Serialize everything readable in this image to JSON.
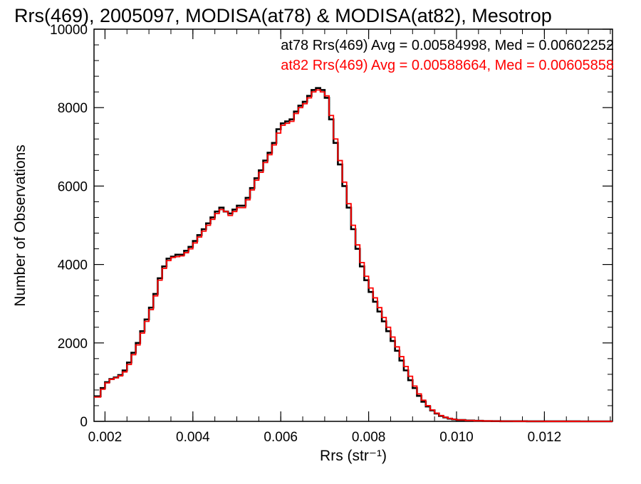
{
  "chart_data": {
    "type": "line",
    "step": true,
    "title": "Rrs(469), 2005097, MODISA(at78) & MODISA(at82), Mesotrop",
    "xlabel": "Rrs (str⁻¹)",
    "ylabel": "Number of Observations",
    "xlim": [
      0.00175,
      0.01355
    ],
    "ylim": [
      0,
      10000
    ],
    "xticks": [
      0.002,
      0.004,
      0.006,
      0.008,
      0.01,
      0.012
    ],
    "xtick_labels": [
      "0.002",
      "0.004",
      "0.006",
      "0.008",
      "0.010",
      "0.012"
    ],
    "yticks": [
      0,
      2000,
      4000,
      6000,
      8000,
      10000
    ],
    "ytick_labels": [
      "0",
      "2000",
      "4000",
      "6000",
      "8000",
      "10000"
    ],
    "grid": false,
    "legend_position": "top-right",
    "series": [
      {
        "name": "at78",
        "color": "#000000",
        "legend_text": "at78 Rrs(469) Avg = 0.00584998, Med = 0.00602252",
        "x": [
          0.00175,
          0.0019,
          0.002,
          0.0021,
          0.0022,
          0.0023,
          0.0024,
          0.0025,
          0.0026,
          0.0027,
          0.0028,
          0.0029,
          0.003,
          0.0031,
          0.0032,
          0.0033,
          0.0034,
          0.0035,
          0.0036,
          0.0037,
          0.0038,
          0.0039,
          0.004,
          0.0041,
          0.0042,
          0.0043,
          0.0044,
          0.0045,
          0.0046,
          0.0047,
          0.0048,
          0.0049,
          0.005,
          0.0051,
          0.0052,
          0.0053,
          0.0054,
          0.0055,
          0.0056,
          0.0057,
          0.0058,
          0.0059,
          0.006,
          0.0061,
          0.0062,
          0.0063,
          0.0064,
          0.0065,
          0.0066,
          0.0067,
          0.0068,
          0.0069,
          0.007,
          0.0071,
          0.0072,
          0.0073,
          0.0074,
          0.0075,
          0.0076,
          0.0077,
          0.0078,
          0.0079,
          0.008,
          0.0081,
          0.0082,
          0.0083,
          0.0084,
          0.0085,
          0.0086,
          0.0087,
          0.0088,
          0.0089,
          0.009,
          0.0091,
          0.0092,
          0.0093,
          0.0094,
          0.0095,
          0.0096,
          0.0097,
          0.0098,
          0.0099,
          0.01,
          0.0102,
          0.0104,
          0.0106,
          0.0108,
          0.011,
          0.0113,
          0.0116,
          0.012,
          0.0124,
          0.0128,
          0.0132,
          0.01355
        ],
        "values": [
          640,
          850,
          1000,
          1080,
          1120,
          1180,
          1300,
          1500,
          1750,
          2000,
          2300,
          2600,
          2900,
          3250,
          3650,
          3950,
          4150,
          4200,
          4250,
          4250,
          4350,
          4450,
          4600,
          4750,
          4900,
          5050,
          5200,
          5350,
          5450,
          5350,
          5300,
          5400,
          5500,
          5500,
          5700,
          5950,
          6200,
          6400,
          6650,
          6850,
          7100,
          7450,
          7600,
          7650,
          7700,
          7900,
          8050,
          8150,
          8300,
          8450,
          8500,
          8450,
          8250,
          7700,
          7100,
          6550,
          6000,
          5450,
          4900,
          4400,
          3950,
          3600,
          3300,
          3050,
          2800,
          2550,
          2300,
          2050,
          1800,
          1550,
          1300,
          1050,
          850,
          650,
          500,
          380,
          280,
          200,
          140,
          100,
          70,
          50,
          35,
          22,
          14,
          9,
          6,
          4,
          3,
          2,
          1,
          1,
          0,
          0,
          0
        ],
        "plotted_x": [
          0.00175,
          0.0019,
          0.002,
          0.0021,
          0.0022,
          0.0023,
          0.0024,
          0.0025,
          0.0026,
          0.0027,
          0.0028,
          0.0029,
          0.003,
          0.0031,
          0.0032,
          0.0033,
          0.0034,
          0.0035,
          0.0036,
          0.0037,
          0.0038,
          0.0039,
          0.004,
          0.0041,
          0.0042,
          0.0043,
          0.0044,
          0.0045,
          0.0046,
          0.0047,
          0.0048,
          0.0049,
          0.005,
          0.0051,
          0.0052,
          0.0053,
          0.0054,
          0.0055,
          0.0056,
          0.0057,
          0.0058,
          0.0059,
          0.006,
          0.0061,
          0.0062,
          0.0063,
          0.0064,
          0.0065,
          0.0066,
          0.0067,
          0.0068,
          0.0069,
          0.007,
          0.0071,
          0.0072,
          0.0073,
          0.0074,
          0.0075,
          0.0076,
          0.0077,
          0.0078,
          0.0079,
          0.008,
          0.0081,
          0.0082,
          0.0083,
          0.0084,
          0.0085,
          0.0086,
          0.0087,
          0.0088,
          0.0089,
          0.009,
          0.0091,
          0.0092,
          0.0093,
          0.0094,
          0.0095,
          0.0096,
          0.0097,
          0.0098,
          0.0099,
          0.01,
          0.0102,
          0.0104,
          0.0106,
          0.0108,
          0.011,
          0.0113,
          0.0116,
          0.012,
          0.0124,
          0.0128,
          0.0132,
          0.01355
        ]
      },
      {
        "name": "at82",
        "color": "#ff0000",
        "legend_text": "at82 Rrs(469) Avg = 0.00588664, Med = 0.00605858",
        "x": [
          0.00175,
          0.0019,
          0.002,
          0.0021,
          0.0022,
          0.0023,
          0.0024,
          0.0025,
          0.0026,
          0.0027,
          0.0028,
          0.0029,
          0.003,
          0.0031,
          0.0032,
          0.0033,
          0.0034,
          0.0035,
          0.0036,
          0.0037,
          0.0038,
          0.0039,
          0.004,
          0.0041,
          0.0042,
          0.0043,
          0.0044,
          0.0045,
          0.0046,
          0.0047,
          0.0048,
          0.0049,
          0.005,
          0.0051,
          0.0052,
          0.0053,
          0.0054,
          0.0055,
          0.0056,
          0.0057,
          0.0058,
          0.0059,
          0.006,
          0.0061,
          0.0062,
          0.0063,
          0.0064,
          0.0065,
          0.0066,
          0.0067,
          0.0068,
          0.0069,
          0.007,
          0.0071,
          0.0072,
          0.0073,
          0.0074,
          0.0075,
          0.0076,
          0.0077,
          0.0078,
          0.0079,
          0.008,
          0.0081,
          0.0082,
          0.0083,
          0.0084,
          0.0085,
          0.0086,
          0.0087,
          0.0088,
          0.0089,
          0.009,
          0.0091,
          0.0092,
          0.0093,
          0.0094,
          0.0095,
          0.0096,
          0.0097,
          0.0098,
          0.0099,
          0.01,
          0.0102,
          0.0104,
          0.0106,
          0.0108,
          0.011,
          0.0113,
          0.0116,
          0.012,
          0.0124,
          0.0128,
          0.0132,
          0.01355
        ],
        "values": [
          620,
          820,
          980,
          1070,
          1110,
          1160,
          1260,
          1450,
          1700,
          1950,
          2250,
          2550,
          2850,
          3200,
          3600,
          3900,
          4100,
          4180,
          4200,
          4220,
          4300,
          4400,
          4550,
          4700,
          4850,
          5000,
          5150,
          5300,
          5400,
          5350,
          5250,
          5350,
          5450,
          5450,
          5650,
          5900,
          6150,
          6350,
          6600,
          6800,
          7050,
          7350,
          7550,
          7600,
          7650,
          7850,
          8000,
          8100,
          8250,
          8400,
          8450,
          8400,
          8300,
          7800,
          7200,
          6650,
          6100,
          5550,
          5000,
          4500,
          4050,
          3700,
          3400,
          3150,
          2900,
          2650,
          2400,
          2150,
          1900,
          1650,
          1400,
          1150,
          900,
          700,
          540,
          400,
          290,
          210,
          150,
          105,
          75,
          52,
          36,
          23,
          15,
          10,
          7,
          5,
          3,
          2,
          1,
          1,
          0,
          0,
          0
        ]
      }
    ]
  }
}
